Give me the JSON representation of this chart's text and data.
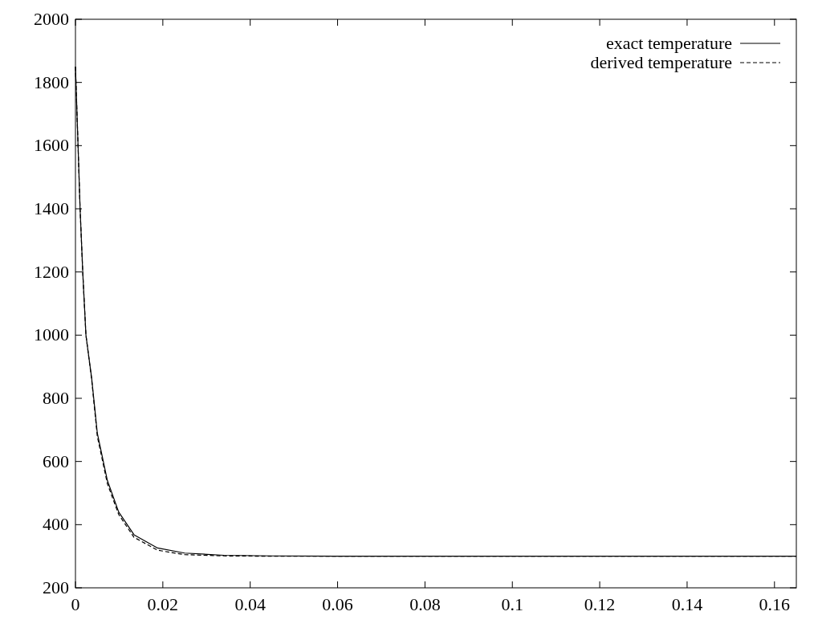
{
  "chart_data": {
    "type": "line",
    "xlim": [
      0,
      0.165
    ],
    "ylim": [
      200,
      2000
    ],
    "xticks": [
      0,
      0.02,
      0.04,
      0.06,
      0.08,
      0.1,
      0.12,
      0.14,
      0.16
    ],
    "yticks": [
      200,
      400,
      600,
      800,
      1000,
      1200,
      1400,
      1600,
      1800,
      2000
    ],
    "grid": false,
    "legend": "top right",
    "series": [
      {
        "name": "exact temperature",
        "color": "#000000",
        "line_style": "solid",
        "x": [
          0,
          0.0005,
          0.00106,
          0.0017,
          0.0024,
          0.0037,
          0.005,
          0.0073,
          0.0099,
          0.0134,
          0.0188,
          0.025,
          0.034,
          0.045,
          0.06,
          0.08,
          0.1,
          0.12,
          0.14,
          0.165
        ],
        "values": [
          1850,
          1640,
          1400,
          1190,
          1000,
          865,
          690,
          540,
          440,
          368,
          326,
          310,
          303,
          301,
          300,
          300,
          300,
          300,
          300,
          300
        ]
      },
      {
        "name": "derived temperature",
        "color": "#000000",
        "line_style": "dashed",
        "x": [
          0,
          0.0005,
          0.00106,
          0.0017,
          0.0024,
          0.0037,
          0.005,
          0.0073,
          0.0099,
          0.0134,
          0.0188,
          0.025,
          0.034,
          0.045,
          0.06,
          0.08,
          0.1,
          0.12,
          0.14,
          0.165
        ],
        "values": [
          1850,
          1640,
          1400,
          1190,
          1000,
          860,
          680,
          530,
          432,
          360,
          319,
          305,
          301,
          300,
          300,
          300,
          300,
          300,
          300,
          300
        ]
      }
    ]
  }
}
